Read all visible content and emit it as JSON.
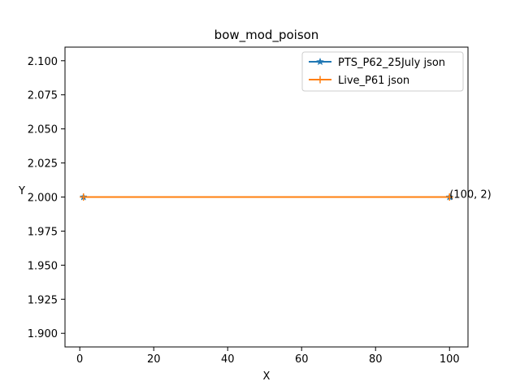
{
  "chart_data": {
    "type": "line",
    "title": "bow_mod_poison",
    "xlabel": "X",
    "ylabel": "Y",
    "xlim": [
      -4,
      105
    ],
    "ylim": [
      1.89,
      2.11
    ],
    "xticks": [
      0,
      20,
      40,
      60,
      80,
      100
    ],
    "yticks": [
      1.9,
      1.925,
      1.95,
      1.975,
      2.0,
      2.025,
      2.05,
      2.075,
      2.1
    ],
    "ytick_labels": [
      "1.900",
      "1.925",
      "1.950",
      "1.975",
      "2.000",
      "2.025",
      "2.050",
      "2.075",
      "2.100"
    ],
    "grid": false,
    "legend_position": "top-right",
    "series": [
      {
        "name": "PTS_P62_25July json",
        "color": "#1f77b4",
        "marker": "star",
        "points": [
          {
            "x": 1,
            "y": 2
          },
          {
            "x": 100,
            "y": 2
          }
        ]
      },
      {
        "name": "Live_P61 json",
        "color": "#ff7f0e",
        "marker": "plus",
        "points": [
          {
            "x": 1,
            "y": 2
          },
          {
            "x": 100,
            "y": 2
          }
        ]
      }
    ],
    "annotations": [
      {
        "text": "(100, 2)",
        "x": 100,
        "y": 2
      }
    ]
  }
}
